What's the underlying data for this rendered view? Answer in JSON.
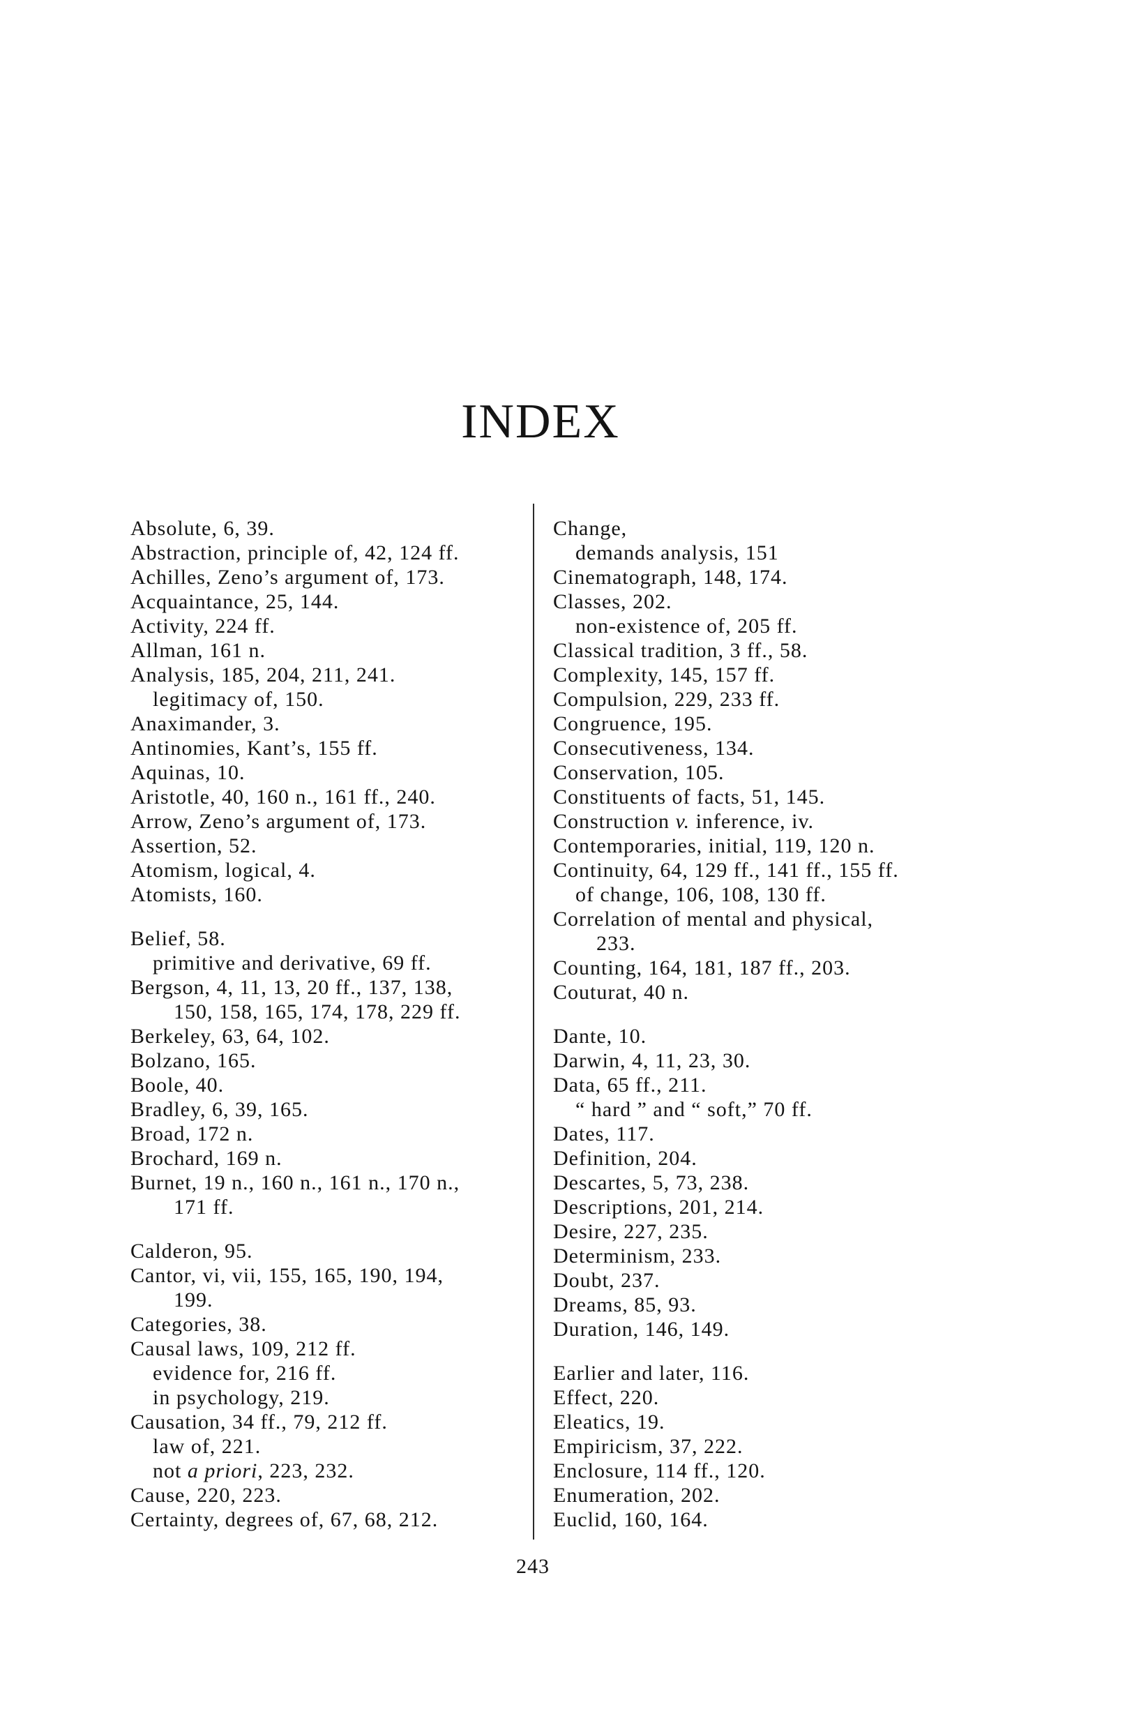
{
  "title": "INDEX",
  "page_number": "243",
  "left": [
    {
      "lines": [
        {
          "k": "main",
          "t": "Absolute, 6, 39."
        },
        {
          "k": "main",
          "t": "Abstraction, principle of, 42, 124 ff."
        },
        {
          "k": "main",
          "t": "Achilles, Zeno’s argument of, 173."
        },
        {
          "k": "main",
          "t": "Acquaintance, 25, 144."
        },
        {
          "k": "main",
          "t": "Activity, 224 ff."
        },
        {
          "k": "main",
          "t": "Allman, 161 n."
        },
        {
          "k": "main",
          "t": "Analysis, 185, 204, 211, 241."
        },
        {
          "k": "sub",
          "t": "legitimacy of, 150."
        },
        {
          "k": "main",
          "t": "Anaximander, 3."
        },
        {
          "k": "main",
          "t": "Antinomies, Kant’s, 155 ff."
        },
        {
          "k": "main",
          "t": "Aquinas, 10."
        },
        {
          "k": "main",
          "t": "Aristotle, 40, 160 n., 161 ff., 240."
        },
        {
          "k": "main",
          "t": "Arrow, Zeno’s argument of, 173."
        },
        {
          "k": "main",
          "t": "Assertion, 52."
        },
        {
          "k": "main",
          "t": "Atomism, logical, 4."
        },
        {
          "k": "main",
          "t": "Atomists, 160."
        }
      ]
    },
    {
      "lines": [
        {
          "k": "main",
          "t": "Belief, 58."
        },
        {
          "k": "sub",
          "t": "primitive and derivative, 69 ff."
        },
        {
          "k": "main",
          "t": "Bergson, 4, 11, 13, 20 ff., 137, 138,"
        },
        {
          "k": "cont",
          "t": "150, 158, 165, 174, 178, 229 ff."
        },
        {
          "k": "main",
          "t": "Berkeley, 63, 64, 102."
        },
        {
          "k": "main",
          "t": "Bolzano, 165."
        },
        {
          "k": "main",
          "t": "Boole, 40."
        },
        {
          "k": "main",
          "t": "Bradley, 6, 39, 165."
        },
        {
          "k": "main",
          "t": "Broad, 172 n."
        },
        {
          "k": "main",
          "t": "Brochard, 169 n."
        },
        {
          "k": "main",
          "t": "Burnet, 19 n., 160 n., 161 n., 170 n.,"
        },
        {
          "k": "cont",
          "t": "171 ff."
        }
      ]
    },
    {
      "lines": [
        {
          "k": "main",
          "t": "Calderon, 95."
        },
        {
          "k": "main",
          "t": "Cantor, vi, vii, 155, 165, 190, 194,"
        },
        {
          "k": "cont",
          "t": "199."
        },
        {
          "k": "main",
          "t": "Categories, 38."
        },
        {
          "k": "main",
          "t": "Causal laws, 109, 212 ff."
        },
        {
          "k": "sub",
          "t": "evidence for, 216 ff."
        },
        {
          "k": "sub",
          "t": "in psychology, 219."
        },
        {
          "k": "main",
          "t": "Causation, 34 ff., 79, 212 ff."
        },
        {
          "k": "sub",
          "t": "law of, 221."
        },
        {
          "k": "sub",
          "t": "not ",
          "i": "a priori",
          "r": ", 223, 232."
        },
        {
          "k": "main",
          "t": "Cause, 220, 223."
        },
        {
          "k": "main",
          "t": "Certainty, degrees of, 67, 68, 212."
        }
      ]
    }
  ],
  "right": [
    {
      "lines": [
        {
          "k": "main",
          "t": "Change,"
        },
        {
          "k": "sub",
          "t": "demands analysis, 151"
        },
        {
          "k": "main",
          "t": "Cinematograph, 148, 174."
        },
        {
          "k": "main",
          "t": "Classes, 202."
        },
        {
          "k": "sub",
          "t": "non-existence of, 205 ff."
        },
        {
          "k": "main",
          "t": "Classical tradition, 3 ff., 58."
        },
        {
          "k": "main",
          "t": "Complexity, 145, 157 ff."
        },
        {
          "k": "main",
          "t": "Compulsion, 229, 233 ff."
        },
        {
          "k": "main",
          "t": "Congruence, 195."
        },
        {
          "k": "main",
          "t": "Consecutiveness, 134."
        },
        {
          "k": "main",
          "t": "Conservation, 105."
        },
        {
          "k": "main",
          "t": "Constituents of facts, 51, 145."
        },
        {
          "k": "main",
          "t": "Construction ",
          "i": "v.",
          "r": " inference, iv."
        },
        {
          "k": "main",
          "t": "Contemporaries, initial, 119, 120 n."
        },
        {
          "k": "main",
          "t": "Continuity, 64, 129 ff., 141 ff., 155 ff."
        },
        {
          "k": "sub",
          "t": "of change, 106, 108, 130 ff."
        },
        {
          "k": "main",
          "t": "Correlation of mental and physical,"
        },
        {
          "k": "cont",
          "t": "233."
        },
        {
          "k": "main",
          "t": "Counting, 164, 181, 187 ff., 203."
        },
        {
          "k": "main",
          "t": "Couturat, 40 n."
        }
      ]
    },
    {
      "lines": [
        {
          "k": "main",
          "t": "Dante, 10."
        },
        {
          "k": "main",
          "t": "Darwin, 4, 11, 23, 30."
        },
        {
          "k": "main",
          "t": "Data, 65 ff., 211."
        },
        {
          "k": "sub",
          "t": "“ hard ” and “ soft,” 70 ff."
        },
        {
          "k": "main",
          "t": "Dates, 117."
        },
        {
          "k": "main",
          "t": "Definition, 204."
        },
        {
          "k": "main",
          "t": "Descartes, 5, 73, 238."
        },
        {
          "k": "main",
          "t": "Descriptions, 201, 214."
        },
        {
          "k": "main",
          "t": "Desire, 227, 235."
        },
        {
          "k": "main",
          "t": "Determinism, 233."
        },
        {
          "k": "main",
          "t": "Doubt, 237."
        },
        {
          "k": "main",
          "t": "Dreams, 85, 93."
        },
        {
          "k": "main",
          "t": "Duration, 146, 149."
        }
      ]
    },
    {
      "lines": [
        {
          "k": "main",
          "t": "Earlier and later, 116."
        },
        {
          "k": "main",
          "t": "Effect, 220."
        },
        {
          "k": "main",
          "t": "Eleatics, 19."
        },
        {
          "k": "main",
          "t": "Empiricism, 37, 222."
        },
        {
          "k": "main",
          "t": "Enclosure, 114 ff., 120."
        },
        {
          "k": "main",
          "t": "Enumeration, 202."
        },
        {
          "k": "main",
          "t": "Euclid, 160, 164."
        }
      ]
    }
  ]
}
